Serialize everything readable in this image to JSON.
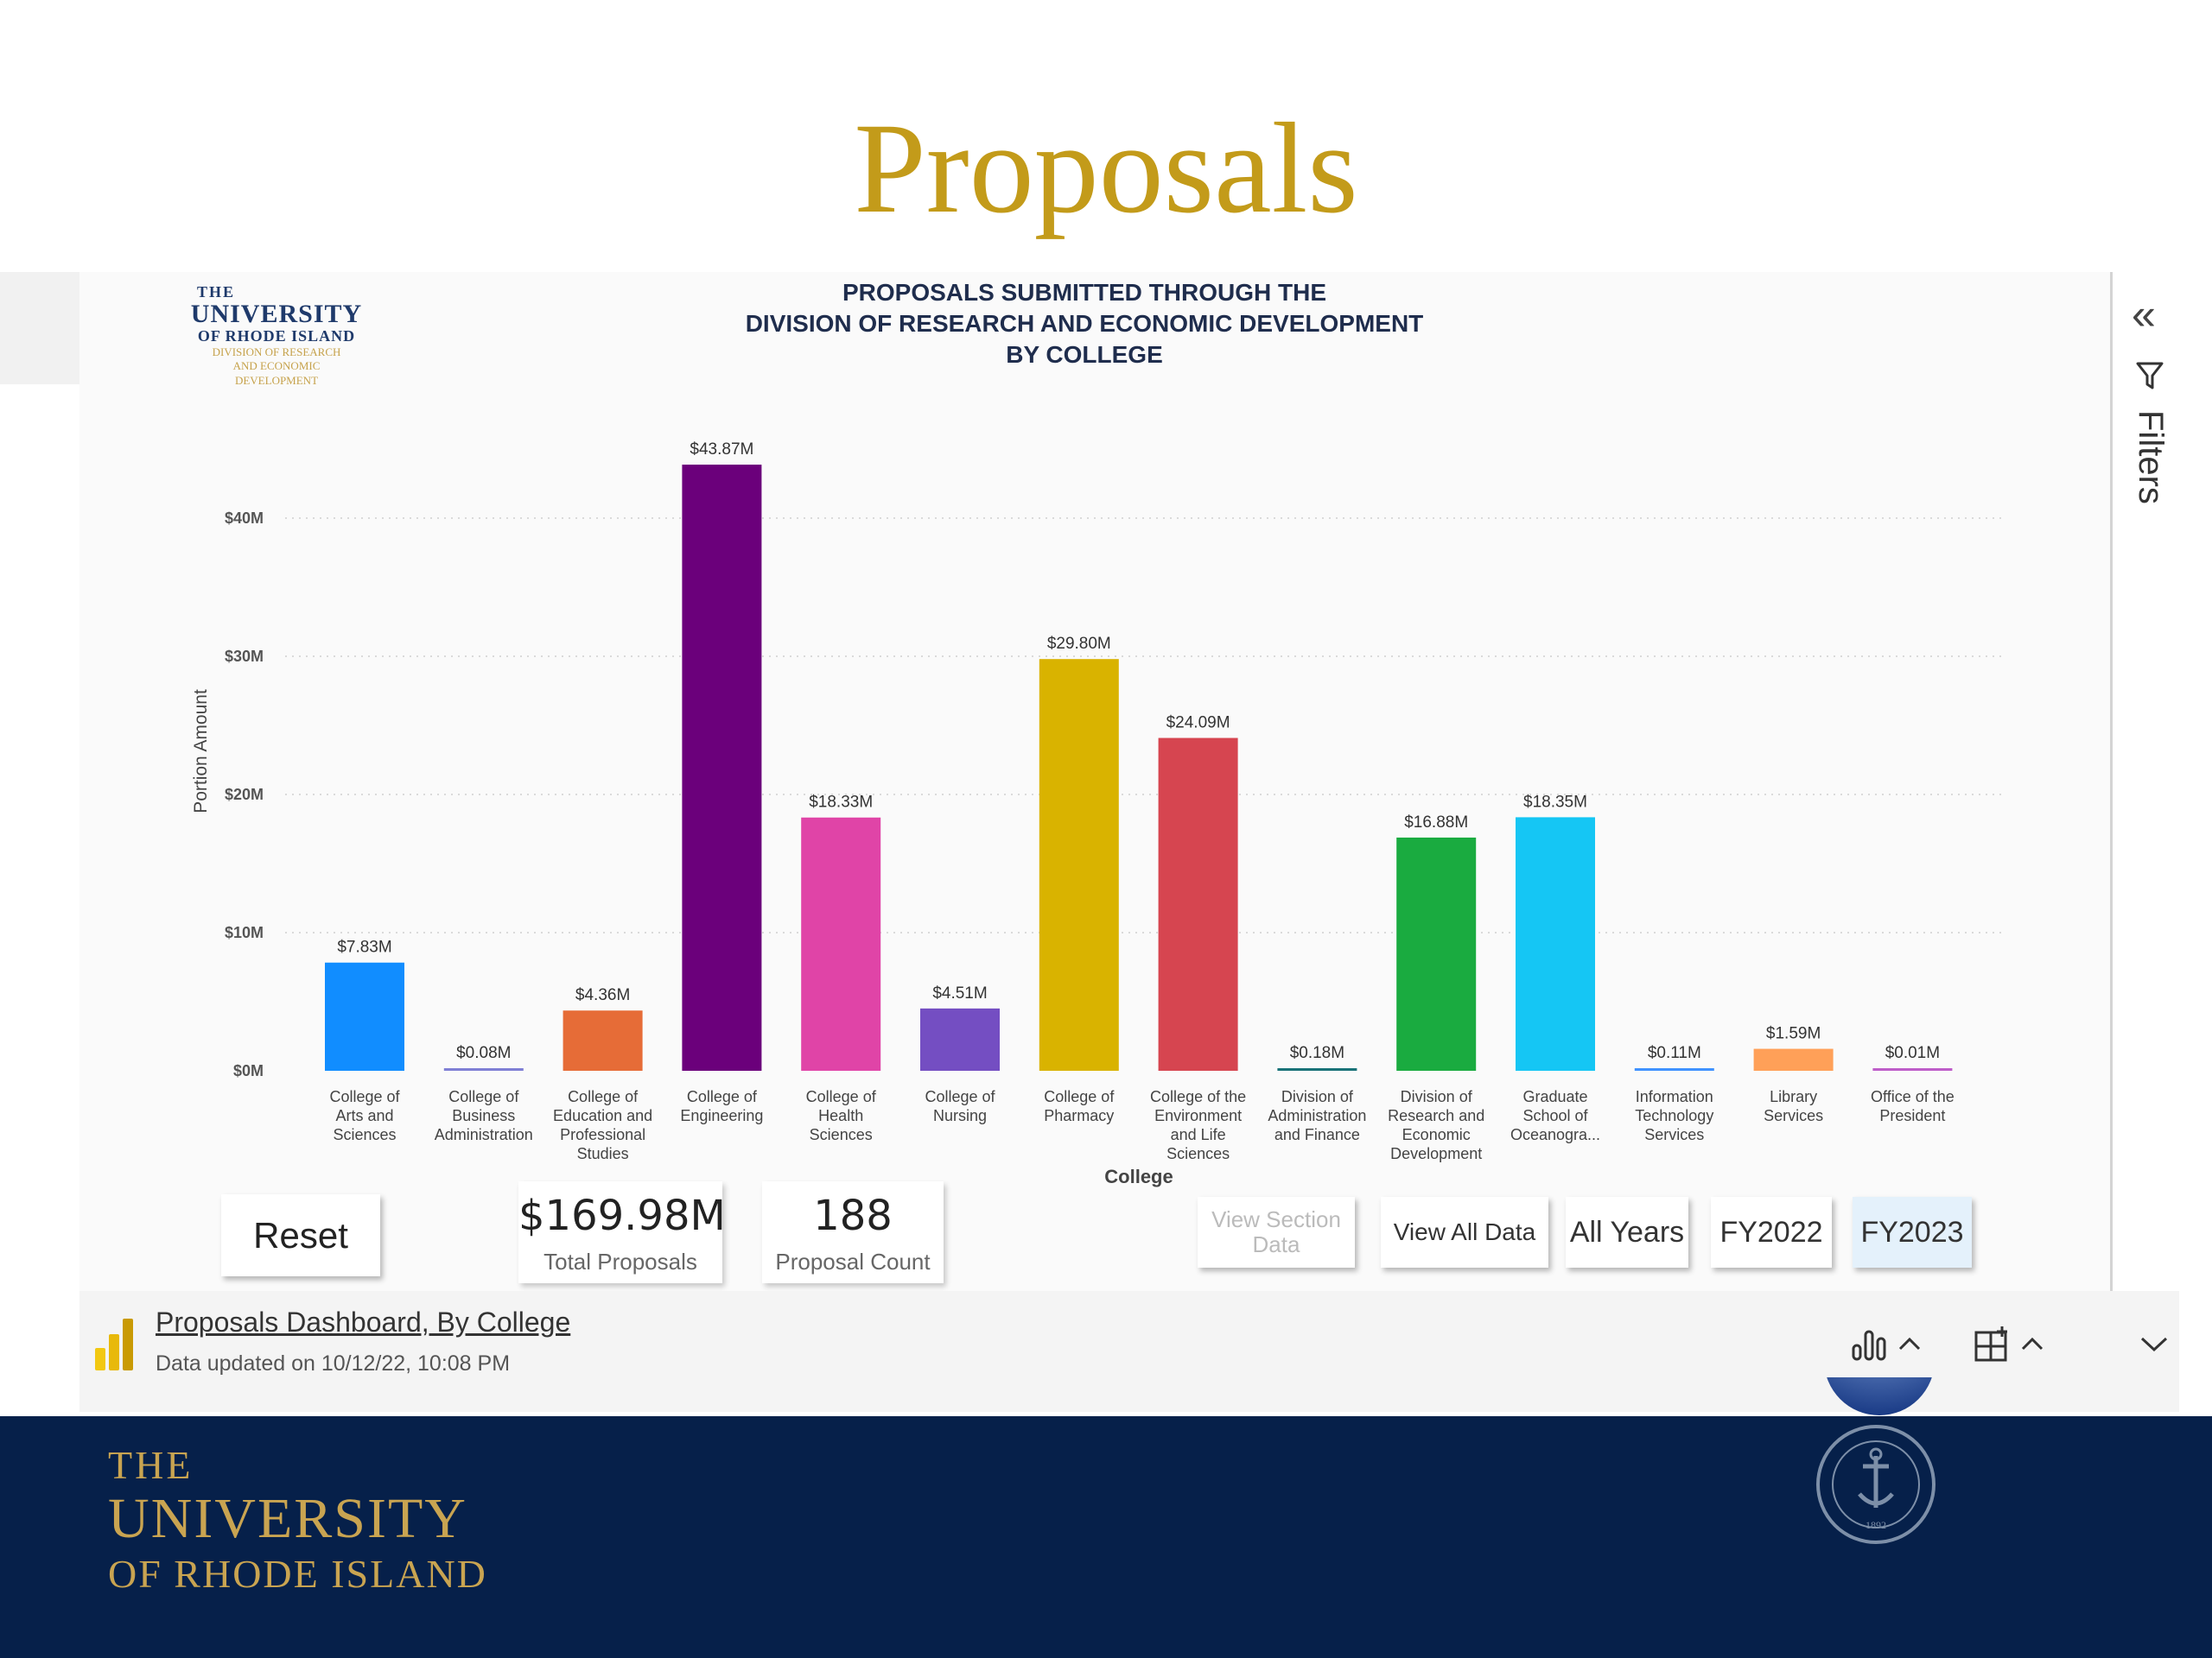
{
  "slide": {
    "title": "Proposals"
  },
  "logo": {
    "line1": "THE",
    "line2": "UNIVERSITY",
    "line3": "OF RHODE ISLAND",
    "line4": "DIVISION OF RESEARCH",
    "line5": "AND ECONOMIC",
    "line6": "DEVELOPMENT"
  },
  "filters_pane": {
    "label": "Filters",
    "collapse_glyph": "«"
  },
  "chart_data": {
    "type": "bar",
    "title_lines": [
      "PROPOSALS SUBMITTED  THROUGH THE",
      "DIVISION OF RESEARCH AND ECONOMIC DEVELOPMENT",
      "BY COLLEGE"
    ],
    "xlabel": "College",
    "ylabel": "Portion Amount",
    "ylim": [
      0,
      45
    ],
    "y_ticks": [
      0,
      10,
      20,
      30,
      40
    ],
    "y_tick_labels": [
      "$0M",
      "$10M",
      "$20M",
      "$30M",
      "$40M"
    ],
    "gridlines": true,
    "categories": [
      [
        "College of",
        "Arts and",
        "Sciences"
      ],
      [
        "College of",
        "Business",
        "Administration"
      ],
      [
        "College of",
        "Education and",
        "Professional",
        "Studies"
      ],
      [
        "College of",
        "Engineering"
      ],
      [
        "College of",
        "Health",
        "Sciences"
      ],
      [
        "College of",
        "Nursing"
      ],
      [
        "College of",
        "Pharmacy"
      ],
      [
        "College of the",
        "Environment",
        "and Life",
        "Sciences"
      ],
      [
        "Division of",
        "Administration",
        "and Finance"
      ],
      [
        "Division of",
        "Research and",
        "Economic",
        "Development"
      ],
      [
        "Graduate",
        "School of",
        "Oceanogra..."
      ],
      [
        "Information",
        "Technology",
        "Services"
      ],
      [
        "Library",
        "Services"
      ],
      [
        "Office of the",
        "President"
      ]
    ],
    "values": [
      7.83,
      0.08,
      4.36,
      43.87,
      18.33,
      4.51,
      29.8,
      24.09,
      0.18,
      16.88,
      18.35,
      0.11,
      1.59,
      0.01
    ],
    "value_labels": [
      "$7.83M",
      "$0.08M",
      "$4.36M",
      "$43.87M",
      "$18.33M",
      "$4.51M",
      "$29.80M",
      "$24.09M",
      "$0.18M",
      "$16.88M",
      "$18.35M",
      "$0.11M",
      "$1.59M",
      "$0.01M"
    ],
    "colors": [
      "#118dff",
      "#7f7fd5",
      "#e66c37",
      "#6b007b",
      "#e044a7",
      "#744ec2",
      "#d9b300",
      "#d64550",
      "#197278",
      "#1aab40",
      "#15c6f4",
      "#4092ff",
      "#ffa058",
      "#be5dc9"
    ]
  },
  "controls": {
    "reset": "Reset",
    "view_section": [
      "View Section",
      "Data"
    ],
    "view_all": "View All Data",
    "all_years": "All Years",
    "fy2022": "FY2022",
    "fy2023": "FY2023"
  },
  "kpis": {
    "total_value": "$169.98M",
    "total_label": "Total Proposals",
    "count_value": "188",
    "count_label": "Proposal Count"
  },
  "footer": {
    "report_name": "Proposals Dashboard, By College",
    "updated": "Data updated on 10/12/22, 10:08 PM"
  },
  "brand": {
    "line1": "THE",
    "line2": "UNIVERSITY",
    "line3": "OF RHODE ISLAND",
    "gold": "#c39b1a",
    "navy": "#06204a"
  }
}
